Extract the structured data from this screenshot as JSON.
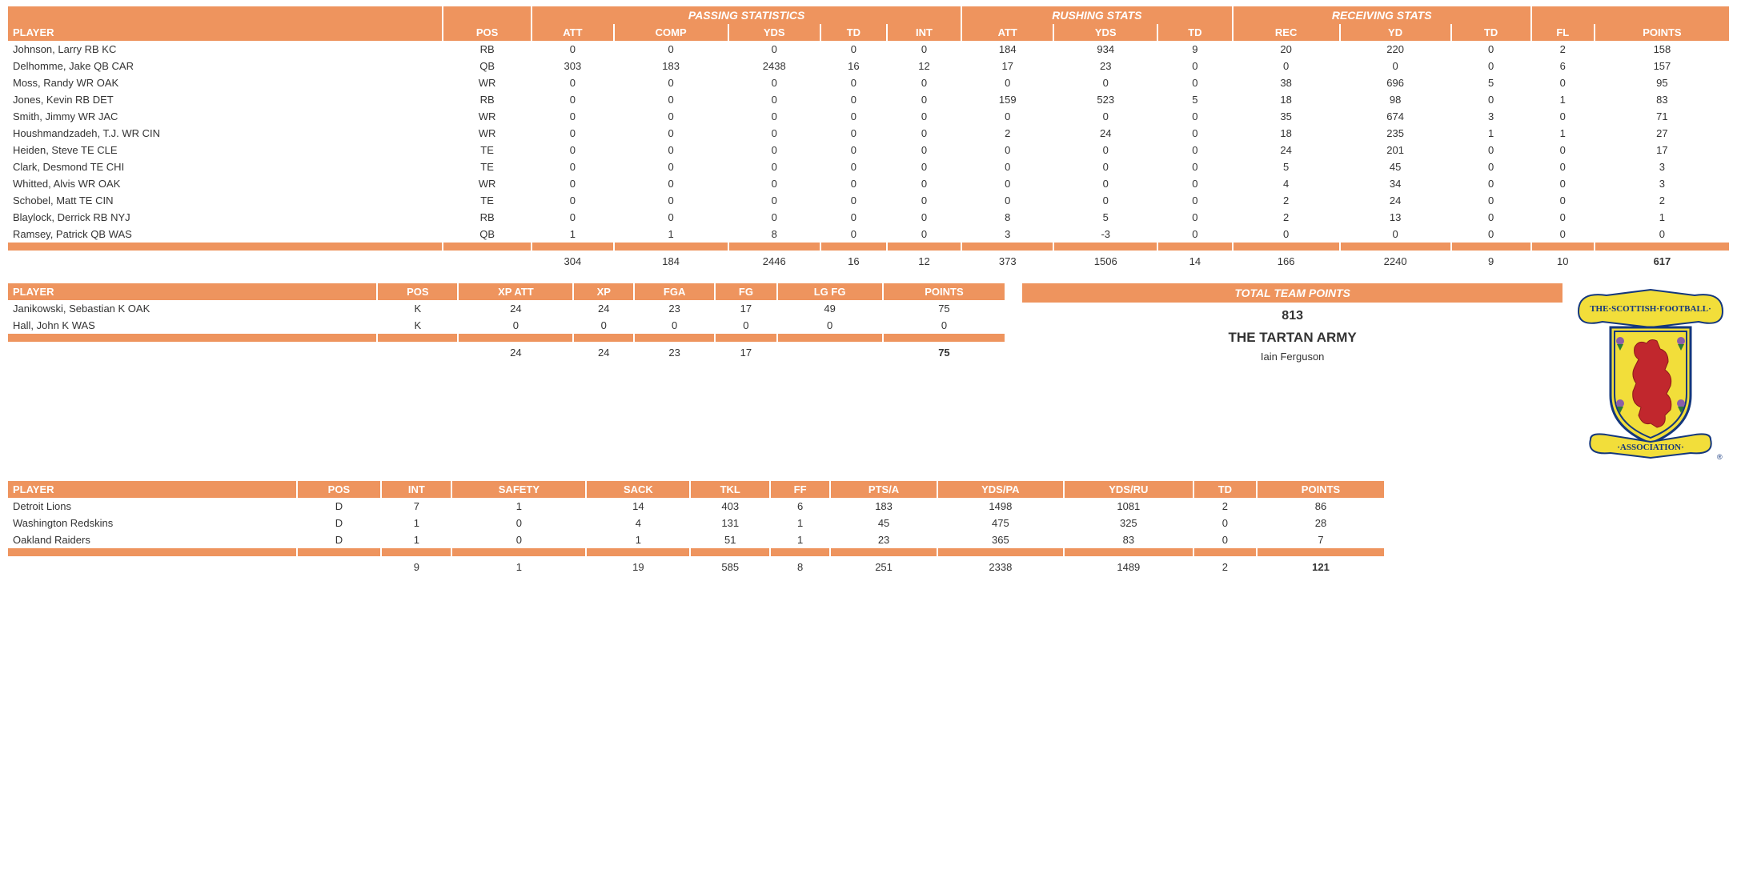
{
  "colors": {
    "header_bg": "#ee945e",
    "header_fg": "#ffffff",
    "body_bg": "#ffffff",
    "text": "#333333"
  },
  "offense": {
    "group_headers": [
      "PASSING STATISTICS",
      "RUSHING STATS",
      "RECEIVING STATS",
      ""
    ],
    "columns": [
      "PLAYER",
      "POS",
      "ATT",
      "COMP",
      "YDS",
      "TD",
      "INT",
      "ATT",
      "YDS",
      "TD",
      "REC",
      "YD",
      "TD",
      "FL",
      "POINTS"
    ],
    "rows": [
      [
        "Johnson, Larry RB KC",
        "RB",
        0,
        0,
        0,
        0,
        0,
        184,
        934,
        9,
        20,
        220,
        0,
        2,
        158
      ],
      [
        "Delhomme, Jake QB CAR",
        "QB",
        303,
        183,
        2438,
        16,
        12,
        17,
        23,
        0,
        0,
        0,
        0,
        6,
        157
      ],
      [
        "Moss, Randy WR OAK",
        "WR",
        0,
        0,
        0,
        0,
        0,
        0,
        0,
        0,
        38,
        696,
        5,
        0,
        95
      ],
      [
        "Jones, Kevin RB DET",
        "RB",
        0,
        0,
        0,
        0,
        0,
        159,
        523,
        5,
        18,
        98,
        0,
        1,
        83
      ],
      [
        "Smith, Jimmy WR JAC",
        "WR",
        0,
        0,
        0,
        0,
        0,
        0,
        0,
        0,
        35,
        674,
        3,
        0,
        71
      ],
      [
        "Houshmandzadeh, T.J. WR CIN",
        "WR",
        0,
        0,
        0,
        0,
        0,
        2,
        24,
        0,
        18,
        235,
        1,
        1,
        27
      ],
      [
        "Heiden, Steve TE CLE",
        "TE",
        0,
        0,
        0,
        0,
        0,
        0,
        0,
        0,
        24,
        201,
        0,
        0,
        17
      ],
      [
        "Clark, Desmond TE CHI",
        "TE",
        0,
        0,
        0,
        0,
        0,
        0,
        0,
        0,
        5,
        45,
        0,
        0,
        3
      ],
      [
        "Whitted, Alvis WR OAK",
        "WR",
        0,
        0,
        0,
        0,
        0,
        0,
        0,
        0,
        4,
        34,
        0,
        0,
        3
      ],
      [
        "Schobel, Matt TE CIN",
        "TE",
        0,
        0,
        0,
        0,
        0,
        0,
        0,
        0,
        2,
        24,
        0,
        0,
        2
      ],
      [
        "Blaylock, Derrick RB NYJ",
        "RB",
        0,
        0,
        0,
        0,
        0,
        8,
        5,
        0,
        2,
        13,
        0,
        0,
        1
      ],
      [
        "Ramsey, Patrick QB WAS",
        "QB",
        1,
        1,
        8,
        0,
        0,
        3,
        -3,
        0,
        0,
        0,
        0,
        0,
        0
      ]
    ],
    "totals": [
      "",
      "",
      304,
      184,
      2446,
      16,
      12,
      373,
      1506,
      14,
      166,
      2240,
      9,
      10,
      617
    ]
  },
  "kicking": {
    "columns": [
      "PLAYER",
      "POS",
      "XP ATT",
      "XP",
      "FGA",
      "FG",
      "LG FG",
      "POINTS"
    ],
    "rows": [
      [
        "Janikowski, Sebastian K OAK",
        "K",
        24,
        24,
        23,
        17,
        49,
        75
      ],
      [
        "Hall, John K WAS",
        "K",
        0,
        0,
        0,
        0,
        0,
        0
      ]
    ],
    "totals": [
      "",
      "",
      24,
      24,
      23,
      17,
      "",
      75
    ]
  },
  "summary": {
    "title": "TOTAL TEAM POINTS",
    "points": "813",
    "team_name": "THE TARTAN ARMY",
    "owner": "Iain Ferguson"
  },
  "defense": {
    "columns": [
      "PLAYER",
      "POS",
      "INT",
      "SAFETY",
      "SACK",
      "TKL",
      "FF",
      "PTS/A",
      "YDS/PA",
      "YDS/RU",
      "TD",
      "POINTS"
    ],
    "rows": [
      [
        "Detroit Lions",
        "D",
        7,
        1,
        14,
        403,
        6,
        183,
        1498,
        1081,
        2,
        86
      ],
      [
        "Washington Redskins",
        "D",
        1,
        0,
        4,
        131,
        1,
        45,
        475,
        325,
        0,
        28
      ],
      [
        "Oakland Raiders",
        "D",
        1,
        0,
        1,
        51,
        1,
        23,
        365,
        83,
        0,
        7
      ]
    ],
    "totals": [
      "",
      "",
      9,
      1,
      19,
      585,
      8,
      251,
      2338,
      1489,
      2,
      121
    ]
  },
  "logo": {
    "banner_text": "THE·SCOTTISH·FOOTBALL·",
    "bottom_text": "·ASSOCIATION·"
  }
}
